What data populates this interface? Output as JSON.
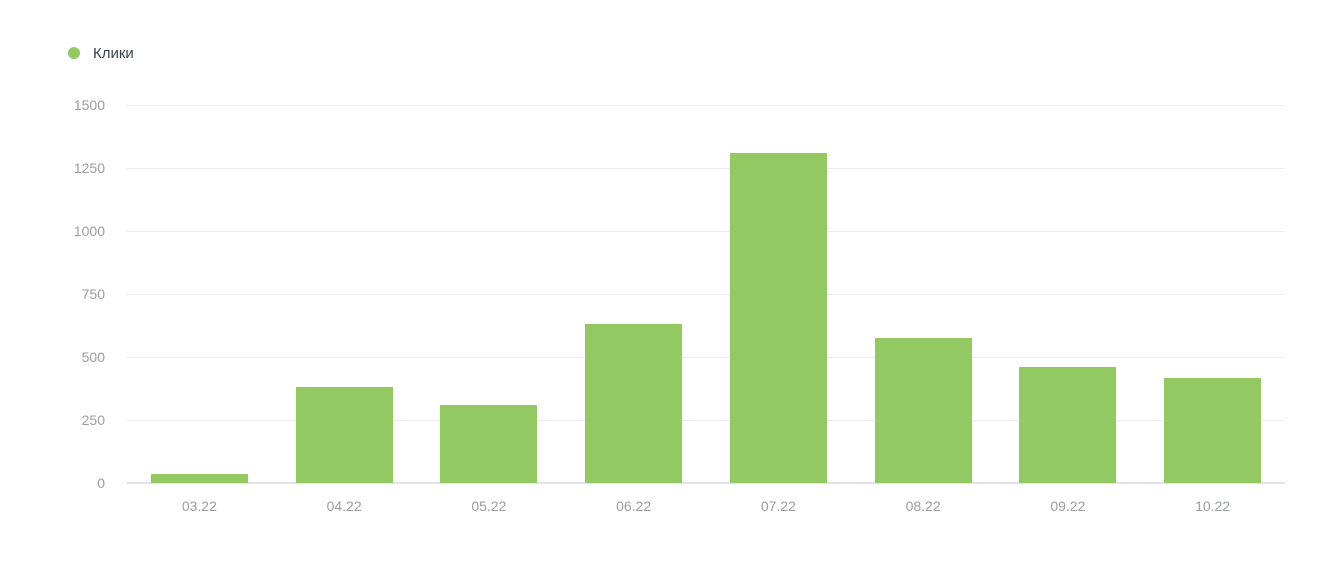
{
  "legend": {
    "items": [
      {
        "label": "Клики",
        "color": "#92c963"
      }
    ]
  },
  "chart_data": {
    "type": "bar",
    "title": "",
    "xlabel": "",
    "ylabel": "",
    "categories": [
      "03.22",
      "04.22",
      "05.22",
      "06.22",
      "07.22",
      "08.22",
      "09.22",
      "10.22"
    ],
    "series": [
      {
        "name": "Клики",
        "color": "#92c963",
        "values": [
          35,
          380,
          310,
          630,
          1310,
          575,
          460,
          415
        ]
      }
    ],
    "ylim": [
      0,
      1500
    ],
    "yticks": [
      0,
      250,
      500,
      750,
      1000,
      1250,
      1500
    ],
    "grid": true,
    "legend_position": "top-left"
  },
  "colors": {
    "bar": "#92c963",
    "gridline": "#ededed",
    "zero_line": "#dfe3ef",
    "tick_label": "#9a9da3",
    "legend_text": "#39414f",
    "background": "#ffffff"
  }
}
